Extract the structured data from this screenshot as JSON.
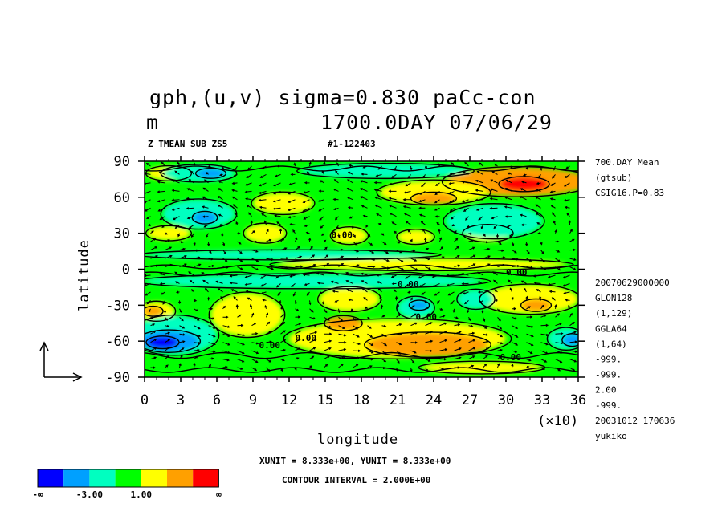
{
  "header": {
    "title_line1": "gph,(u,v) sigma=0.830 paCc-con",
    "title_line2_left": "m",
    "title_line2_right": "1700.0DAY 07/06/29",
    "sub_left": "Z TMEAN SUB ZS5",
    "sub_right": "#1-122403"
  },
  "side_info": {
    "top": [
      "700.DAY Mean",
      "(gtsub)",
      "CSIG16.P=0.83"
    ],
    "bottom": [
      "20070629000000",
      "GLON128",
      "(1,129)",
      "GGLA64",
      "(1,64)",
      "-999.",
      "-999.",
      "2.00",
      "-999.",
      "20031012 170636",
      "yukiko"
    ]
  },
  "footer": {
    "units": "XUNIT = 8.333e+00, YUNIT = 8.333e+00",
    "contour_interval": "CONTOUR INTERVAL = 2.000E+00"
  },
  "colorbar": {
    "colors": [
      "#0000ff",
      "#00a0ff",
      "#00ffc0",
      "#00ff00",
      "#ffff00",
      "#ffa000",
      "#ff0000"
    ],
    "labels": [
      "-∞",
      "-3.00",
      "1.00",
      "∞"
    ]
  },
  "chart_data": {
    "type": "heatmap",
    "xlabel": "longitude",
    "ylabel": "latitude",
    "x_multiplier_label": "(×10)",
    "xlim": [
      0,
      36
    ],
    "ylim": [
      -90,
      90
    ],
    "x_ticks": [
      "0",
      "3",
      "6",
      "9",
      "12",
      "15",
      "18",
      "21",
      "24",
      "27",
      "30",
      "33",
      "36"
    ],
    "y_ticks": [
      "90",
      "60",
      "30",
      "0",
      "-30",
      "-60",
      "-90"
    ],
    "contour_labels": [
      {
        "text": "0.00",
        "x": 9.5,
        "y": -66
      },
      {
        "text": "0.00",
        "x": 12.5,
        "y": -60
      },
      {
        "text": "0.00",
        "x": 15.5,
        "y": 26
      },
      {
        "text": "0.00",
        "x": 21,
        "y": -15
      },
      {
        "text": "0.00",
        "x": 22.5,
        "y": -42
      },
      {
        "text": "0.00",
        "x": 30,
        "y": -5
      },
      {
        "text": "0.00",
        "x": 29.5,
        "y": -76
      }
    ],
    "blobs": [
      {
        "value": 2,
        "x": 2,
        "y": 80,
        "rx": 1.8,
        "ry": 6
      },
      {
        "value": 3,
        "x": 31,
        "y": 73,
        "rx": 6,
        "ry": 12
      },
      {
        "value": 4,
        "x": 31.5,
        "y": 71,
        "rx": 2,
        "ry": 6
      },
      {
        "value": 2,
        "x": 24,
        "y": 64,
        "rx": 4.5,
        "ry": 10
      },
      {
        "value": 3,
        "x": 24,
        "y": 59,
        "rx": 1.8,
        "ry": 5
      },
      {
        "value": 2,
        "x": 11.5,
        "y": 55,
        "rx": 2.5,
        "ry": 9
      },
      {
        "value": 2,
        "x": 10,
        "y": 30,
        "rx": 1.7,
        "ry": 8
      },
      {
        "value": 2,
        "x": 2,
        "y": 30,
        "rx": 1.8,
        "ry": 6
      },
      {
        "value": 2,
        "x": 17,
        "y": 28,
        "rx": 1.5,
        "ry": 7
      },
      {
        "value": 2,
        "x": 22.5,
        "y": 27,
        "rx": 1.5,
        "ry": 6
      },
      {
        "value": 2,
        "x": 28.5,
        "y": 30,
        "rx": 2,
        "ry": 7
      },
      {
        "value": 2,
        "x": 23,
        "y": 4,
        "rx": 12,
        "ry": 5
      },
      {
        "value": 2,
        "x": 32,
        "y": -25,
        "rx": 4,
        "ry": 12
      },
      {
        "value": 3,
        "x": 32.5,
        "y": -30,
        "rx": 1.2,
        "ry": 5
      },
      {
        "value": 2,
        "x": 8.5,
        "y": -38,
        "rx": 3,
        "ry": 18
      },
      {
        "value": 2,
        "x": 17,
        "y": -25,
        "rx": 2.5,
        "ry": 10
      },
      {
        "value": 2,
        "x": 21,
        "y": -58,
        "rx": 9,
        "ry": 16
      },
      {
        "value": 3,
        "x": 23.5,
        "y": -63,
        "rx": 5,
        "ry": 10
      },
      {
        "value": 3,
        "x": 16.5,
        "y": -45,
        "rx": 1.5,
        "ry": 6
      },
      {
        "value": 2,
        "x": 1,
        "y": -35,
        "rx": 1.5,
        "ry": 8
      },
      {
        "value": 3,
        "x": 0.7,
        "y": -35,
        "rx": 0.8,
        "ry": 4
      },
      {
        "value": 2,
        "x": 28,
        "y": -82,
        "rx": 5,
        "ry": 5
      },
      {
        "value": -1,
        "x": 2.5,
        "y": -55,
        "rx": 3.5,
        "ry": 16
      },
      {
        "value": -2,
        "x": 2,
        "y": -60,
        "rx": 2.5,
        "ry": 9
      },
      {
        "value": -3,
        "x": 1.5,
        "y": -61,
        "rx": 1.3,
        "ry": 5
      },
      {
        "value": -1,
        "x": 35,
        "y": -58,
        "rx": 1.5,
        "ry": 9
      },
      {
        "value": -2,
        "x": 35.5,
        "y": -59,
        "rx": 0.8,
        "ry": 5
      },
      {
        "value": -1,
        "x": 4.5,
        "y": 80,
        "rx": 3,
        "ry": 7
      },
      {
        "value": -2,
        "x": 5.5,
        "y": 80,
        "rx": 1.2,
        "ry": 4
      },
      {
        "value": -1,
        "x": 4.5,
        "y": 46,
        "rx": 3,
        "ry": 12
      },
      {
        "value": -2,
        "x": 5,
        "y": 43,
        "rx": 1,
        "ry": 5
      },
      {
        "value": -1,
        "x": 22.5,
        "y": -32,
        "rx": 1.5,
        "ry": 9
      },
      {
        "value": -2,
        "x": 22.8,
        "y": -30,
        "rx": 0.8,
        "ry": 4
      },
      {
        "value": -1,
        "x": 27.5,
        "y": -25,
        "rx": 1.5,
        "ry": 8
      },
      {
        "value": -1,
        "x": 29,
        "y": 40,
        "rx": 4,
        "ry": 14
      },
      {
        "value": -1,
        "x": 12,
        "y": 12,
        "rx": 12,
        "ry": 4
      },
      {
        "value": -1,
        "x": 14,
        "y": -10,
        "rx": 14,
        "ry": 6
      },
      {
        "value": -1,
        "x": 20,
        "y": 82,
        "rx": 7,
        "ry": 6
      }
    ]
  }
}
